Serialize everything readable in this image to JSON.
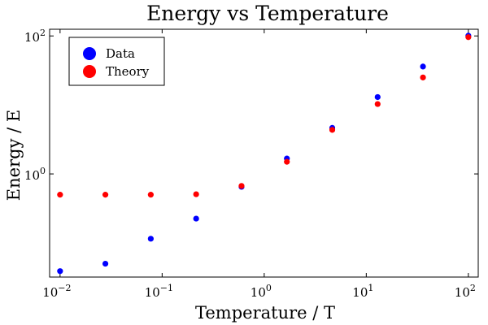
{
  "chart_data": {
    "type": "scatter",
    "title": "Energy vs Temperature",
    "xlabel": "Temperature / T",
    "ylabel": "Energy / E",
    "xscale": "log",
    "yscale": "log",
    "xlim": [
      0.0079,
      125
    ],
    "ylim": [
      0.032,
      125
    ],
    "x_ticks": [
      {
        "value": 0.01,
        "base": "10",
        "exp": "−2"
      },
      {
        "value": 0.1,
        "base": "10",
        "exp": "−1"
      },
      {
        "value": 1,
        "base": "10",
        "exp": "0"
      },
      {
        "value": 10,
        "base": "10",
        "exp": "1"
      },
      {
        "value": 100,
        "base": "10",
        "exp": "2"
      }
    ],
    "y_ticks": [
      {
        "value": 1,
        "base": "10",
        "exp": "0"
      },
      {
        "value": 100,
        "base": "10",
        "exp": "2"
      }
    ],
    "grid": false,
    "legend_position": "top-left",
    "series": [
      {
        "name": "Data",
        "color": "#0000ff",
        "x": [
          0.01,
          0.0278,
          0.0774,
          0.2154,
          0.5995,
          1.668,
          4.642,
          12.92,
          35.94,
          100
        ],
        "y": [
          0.039,
          0.05,
          0.115,
          0.225,
          0.65,
          1.67,
          4.65,
          13.0,
          36.0,
          101
        ]
      },
      {
        "name": "Theory",
        "color": "#ff0000",
        "x": [
          0.01,
          0.0278,
          0.0774,
          0.2154,
          0.5995,
          1.668,
          4.642,
          12.92,
          35.94,
          100
        ],
        "y": [
          0.5,
          0.5,
          0.5,
          0.508,
          0.67,
          1.5,
          4.35,
          10.3,
          25.0,
          96
        ]
      }
    ]
  }
}
